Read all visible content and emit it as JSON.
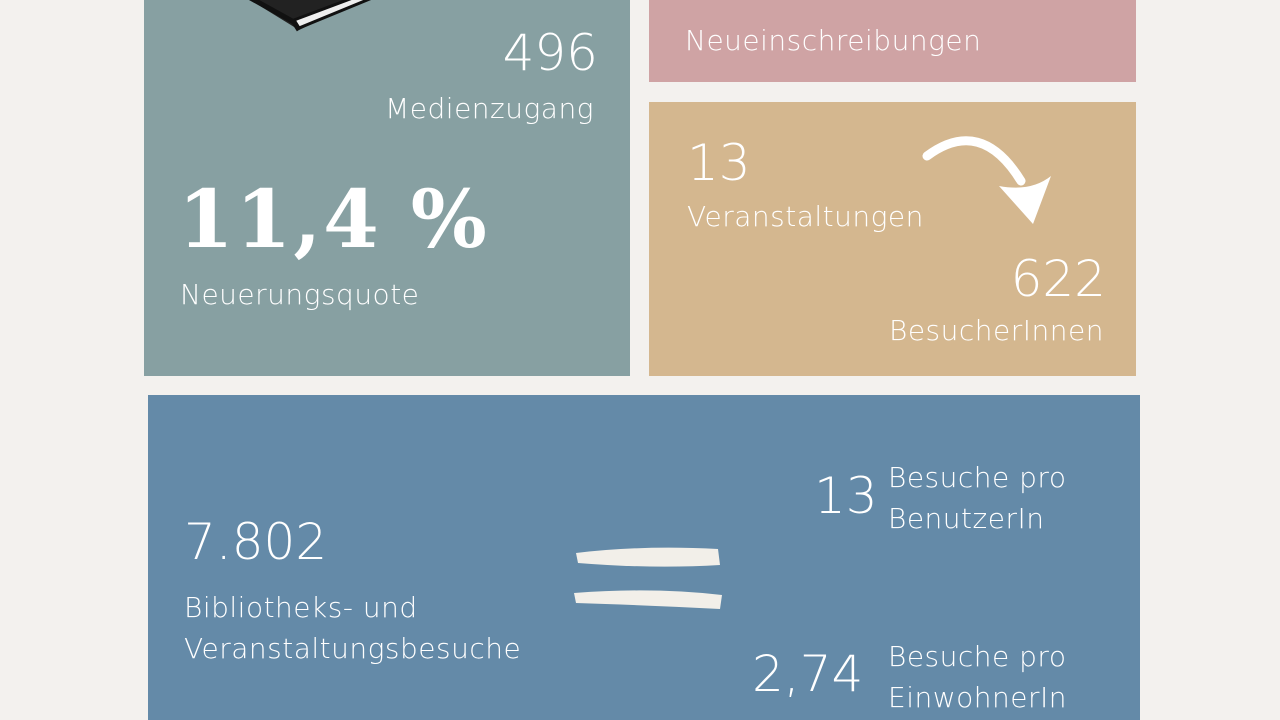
{
  "colors": {
    "background": "#f3f1ee",
    "media_box": "#87a0a2",
    "registrations_box": "#cfa3a4",
    "events_box": "#d4b78f",
    "visits_box": "#648aa8"
  },
  "media": {
    "icon": "book-stack-icon",
    "value": "496",
    "label": "Medienzugang",
    "rate_value": "11,4 %",
    "rate_label": "Neuerungsquote"
  },
  "registrations": {
    "label": "Neueinschreibungen"
  },
  "events": {
    "value": "13",
    "label": "Veranstaltungen",
    "arrow_icon": "curved-arrow-icon",
    "visitors_value": "622",
    "visitors_label": "BesucherInnen"
  },
  "visits": {
    "value": "7.802",
    "label_line1": "Bibliotheks- und",
    "label_line2": "Veranstaltungsbesuche",
    "equals_icon": "equals-icon",
    "per_user_value": "13",
    "per_user_line1": "Besuche pro",
    "per_user_line2": "BenutzerIn",
    "per_resident_value": "2,74",
    "per_resident_line1": "Besuche pro",
    "per_resident_line2": "EinwohnerIn"
  }
}
